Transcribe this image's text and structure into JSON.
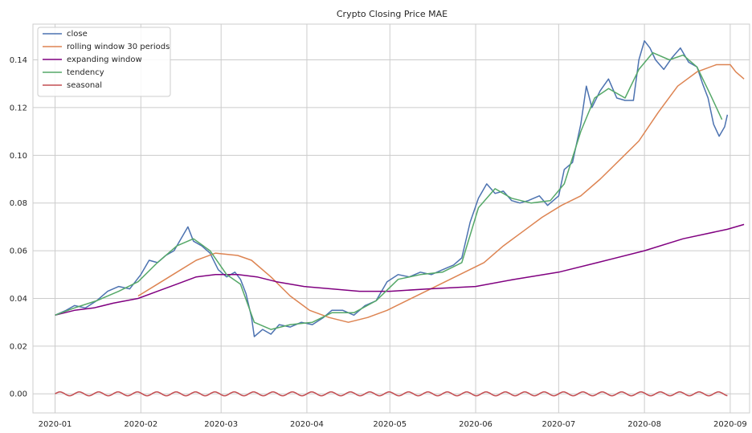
{
  "chart_data": {
    "type": "line",
    "title": "Crypto Closing Price MAE",
    "xlabel": "",
    "ylabel": "",
    "xlim": [
      "2019-12-24",
      "2020-09-08"
    ],
    "ylim": [
      -0.008,
      0.155
    ],
    "x_ticks": [
      "2020-01",
      "2020-02",
      "2020-03",
      "2020-04",
      "2020-05",
      "2020-06",
      "2020-07",
      "2020-08",
      "2020-09"
    ],
    "y_ticks": [
      "0.00",
      "0.02",
      "0.04",
      "0.06",
      "0.08",
      "0.10",
      "0.12",
      "0.14"
    ],
    "grid": true,
    "legend_position": "top-left",
    "series": [
      {
        "name": "close",
        "color": "#4c72b0",
        "points": [
          [
            "2020-01-01",
            0.033
          ],
          [
            "2020-01-05",
            0.035
          ],
          [
            "2020-01-08",
            0.037
          ],
          [
            "2020-01-12",
            0.036
          ],
          [
            "2020-01-16",
            0.039
          ],
          [
            "2020-01-20",
            0.043
          ],
          [
            "2020-01-24",
            0.045
          ],
          [
            "2020-01-28",
            0.044
          ],
          [
            "2020-02-01",
            0.05
          ],
          [
            "2020-02-04",
            0.056
          ],
          [
            "2020-02-07",
            0.055
          ],
          [
            "2020-02-10",
            0.058
          ],
          [
            "2020-02-13",
            0.06
          ],
          [
            "2020-02-16",
            0.066
          ],
          [
            "2020-02-18",
            0.07
          ],
          [
            "2020-02-20",
            0.064
          ],
          [
            "2020-02-23",
            0.062
          ],
          [
            "2020-02-26",
            0.059
          ],
          [
            "2020-02-29",
            0.052
          ],
          [
            "2020-03-03",
            0.049
          ],
          [
            "2020-03-06",
            0.051
          ],
          [
            "2020-03-08",
            0.048
          ],
          [
            "2020-03-10",
            0.042
          ],
          [
            "2020-03-12",
            0.032
          ],
          [
            "2020-03-13",
            0.024
          ],
          [
            "2020-03-16",
            0.027
          ],
          [
            "2020-03-19",
            0.025
          ],
          [
            "2020-03-22",
            0.029
          ],
          [
            "2020-03-26",
            0.028
          ],
          [
            "2020-03-30",
            0.03
          ],
          [
            "2020-04-03",
            0.029
          ],
          [
            "2020-04-07",
            0.032
          ],
          [
            "2020-04-10",
            0.035
          ],
          [
            "2020-04-14",
            0.035
          ],
          [
            "2020-04-18",
            0.033
          ],
          [
            "2020-04-22",
            0.037
          ],
          [
            "2020-04-26",
            0.039
          ],
          [
            "2020-04-30",
            0.047
          ],
          [
            "2020-05-04",
            0.05
          ],
          [
            "2020-05-08",
            0.049
          ],
          [
            "2020-05-12",
            0.051
          ],
          [
            "2020-05-16",
            0.05
          ],
          [
            "2020-05-20",
            0.052
          ],
          [
            "2020-05-24",
            0.054
          ],
          [
            "2020-05-27",
            0.057
          ],
          [
            "2020-05-30",
            0.072
          ],
          [
            "2020-06-02",
            0.082
          ],
          [
            "2020-06-05",
            0.088
          ],
          [
            "2020-06-08",
            0.084
          ],
          [
            "2020-06-11",
            0.085
          ],
          [
            "2020-06-14",
            0.081
          ],
          [
            "2020-06-17",
            0.08
          ],
          [
            "2020-06-20",
            0.081
          ],
          [
            "2020-06-24",
            0.083
          ],
          [
            "2020-06-27",
            0.079
          ],
          [
            "2020-07-01",
            0.083
          ],
          [
            "2020-07-03",
            0.094
          ],
          [
            "2020-07-06",
            0.097
          ],
          [
            "2020-07-09",
            0.113
          ],
          [
            "2020-07-11",
            0.129
          ],
          [
            "2020-07-13",
            0.12
          ],
          [
            "2020-07-16",
            0.127
          ],
          [
            "2020-07-19",
            0.132
          ],
          [
            "2020-07-22",
            0.124
          ],
          [
            "2020-07-25",
            0.123
          ],
          [
            "2020-07-28",
            0.123
          ],
          [
            "2020-07-30",
            0.14
          ],
          [
            "2020-08-01",
            0.148
          ],
          [
            "2020-08-03",
            0.145
          ],
          [
            "2020-08-05",
            0.14
          ],
          [
            "2020-08-08",
            0.136
          ],
          [
            "2020-08-11",
            0.141
          ],
          [
            "2020-08-14",
            0.145
          ],
          [
            "2020-08-17",
            0.139
          ],
          [
            "2020-08-20",
            0.137
          ],
          [
            "2020-08-22",
            0.13
          ],
          [
            "2020-08-24",
            0.124
          ],
          [
            "2020-08-26",
            0.113
          ],
          [
            "2020-08-28",
            0.108
          ],
          [
            "2020-08-30",
            0.112
          ],
          [
            "2020-08-31",
            0.117
          ]
        ]
      },
      {
        "name": "rolling window 30 periods",
        "color": "#dd8452",
        "points": [
          [
            "2020-01-31",
            0.041
          ],
          [
            "2020-02-07",
            0.046
          ],
          [
            "2020-02-14",
            0.051
          ],
          [
            "2020-02-21",
            0.056
          ],
          [
            "2020-02-28",
            0.059
          ],
          [
            "2020-03-07",
            0.058
          ],
          [
            "2020-03-12",
            0.056
          ],
          [
            "2020-03-19",
            0.049
          ],
          [
            "2020-03-26",
            0.041
          ],
          [
            "2020-04-02",
            0.035
          ],
          [
            "2020-04-09",
            0.032
          ],
          [
            "2020-04-16",
            0.03
          ],
          [
            "2020-04-23",
            0.032
          ],
          [
            "2020-04-30",
            0.035
          ],
          [
            "2020-05-07",
            0.039
          ],
          [
            "2020-05-14",
            0.043
          ],
          [
            "2020-05-21",
            0.047
          ],
          [
            "2020-05-28",
            0.051
          ],
          [
            "2020-06-04",
            0.055
          ],
          [
            "2020-06-11",
            0.062
          ],
          [
            "2020-06-18",
            0.068
          ],
          [
            "2020-06-25",
            0.074
          ],
          [
            "2020-07-02",
            0.079
          ],
          [
            "2020-07-09",
            0.083
          ],
          [
            "2020-07-16",
            0.09
          ],
          [
            "2020-07-23",
            0.098
          ],
          [
            "2020-07-30",
            0.106
          ],
          [
            "2020-08-06",
            0.118
          ],
          [
            "2020-08-13",
            0.129
          ],
          [
            "2020-08-20",
            0.135
          ],
          [
            "2020-08-27",
            0.138
          ],
          [
            "2020-09-01",
            0.138
          ],
          [
            "2020-09-03",
            0.135
          ],
          [
            "2020-09-06",
            0.132
          ]
        ]
      },
      {
        "name": "expanding window",
        "color": "#800080",
        "points": [
          [
            "2020-01-01",
            0.033
          ],
          [
            "2020-01-08",
            0.035
          ],
          [
            "2020-01-15",
            0.036
          ],
          [
            "2020-01-22",
            0.038
          ],
          [
            "2020-01-31",
            0.04
          ],
          [
            "2020-02-07",
            0.043
          ],
          [
            "2020-02-14",
            0.046
          ],
          [
            "2020-02-21",
            0.049
          ],
          [
            "2020-02-28",
            0.05
          ],
          [
            "2020-03-07",
            0.05
          ],
          [
            "2020-03-14",
            0.049
          ],
          [
            "2020-03-21",
            0.047
          ],
          [
            "2020-03-31",
            0.045
          ],
          [
            "2020-04-10",
            0.044
          ],
          [
            "2020-04-20",
            0.043
          ],
          [
            "2020-05-01",
            0.043
          ],
          [
            "2020-05-15",
            0.044
          ],
          [
            "2020-06-01",
            0.045
          ],
          [
            "2020-06-15",
            0.048
          ],
          [
            "2020-07-01",
            0.051
          ],
          [
            "2020-07-15",
            0.055
          ],
          [
            "2020-08-01",
            0.06
          ],
          [
            "2020-08-15",
            0.065
          ],
          [
            "2020-08-31",
            0.069
          ],
          [
            "2020-09-06",
            0.071
          ]
        ]
      },
      {
        "name": "tendency",
        "color": "#55a868",
        "points": [
          [
            "2020-01-01",
            0.033
          ],
          [
            "2020-01-08",
            0.036
          ],
          [
            "2020-01-16",
            0.039
          ],
          [
            "2020-01-24",
            0.043
          ],
          [
            "2020-01-31",
            0.047
          ],
          [
            "2020-02-07",
            0.055
          ],
          [
            "2020-02-14",
            0.062
          ],
          [
            "2020-02-20",
            0.065
          ],
          [
            "2020-02-26",
            0.06
          ],
          [
            "2020-03-03",
            0.05
          ],
          [
            "2020-03-08",
            0.046
          ],
          [
            "2020-03-13",
            0.03
          ],
          [
            "2020-03-19",
            0.027
          ],
          [
            "2020-03-26",
            0.029
          ],
          [
            "2020-04-03",
            0.03
          ],
          [
            "2020-04-10",
            0.034
          ],
          [
            "2020-04-18",
            0.034
          ],
          [
            "2020-04-26",
            0.039
          ],
          [
            "2020-05-04",
            0.048
          ],
          [
            "2020-05-12",
            0.05
          ],
          [
            "2020-05-20",
            0.051
          ],
          [
            "2020-05-27",
            0.055
          ],
          [
            "2020-06-02",
            0.078
          ],
          [
            "2020-06-08",
            0.086
          ],
          [
            "2020-06-14",
            0.082
          ],
          [
            "2020-06-21",
            0.08
          ],
          [
            "2020-06-28",
            0.081
          ],
          [
            "2020-07-03",
            0.088
          ],
          [
            "2020-07-09",
            0.11
          ],
          [
            "2020-07-14",
            0.124
          ],
          [
            "2020-07-19",
            0.128
          ],
          [
            "2020-07-25",
            0.124
          ],
          [
            "2020-07-30",
            0.136
          ],
          [
            "2020-08-04",
            0.143
          ],
          [
            "2020-08-10",
            0.14
          ],
          [
            "2020-08-15",
            0.142
          ],
          [
            "2020-08-20",
            0.137
          ],
          [
            "2020-08-25",
            0.125
          ],
          [
            "2020-08-29",
            0.115
          ]
        ]
      },
      {
        "name": "seasonal",
        "color": "#c44e52",
        "oscillation": {
          "start": "2020-01-01",
          "end": "2020-08-31",
          "period_days": 7,
          "amplitude": 0.0008,
          "mean": 0.0
        }
      }
    ]
  }
}
